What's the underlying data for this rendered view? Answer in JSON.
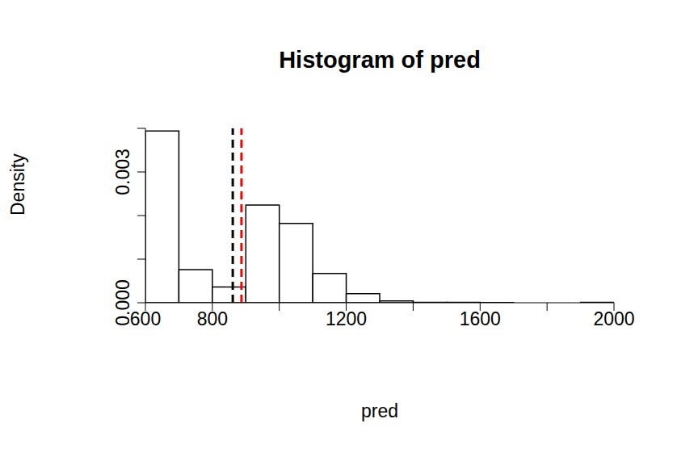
{
  "chart_data": {
    "type": "histogram",
    "title": "Histogram of pred",
    "x_label": "pred",
    "y_label": "Density",
    "bins": [
      600,
      700,
      800,
      900,
      1000,
      1100,
      1200,
      1300,
      1400,
      1500,
      1600,
      1700,
      1800,
      1900,
      2000
    ],
    "values": [
      0.00394,
      0.00076,
      0.00036,
      0.00224,
      0.00182,
      0.00067,
      0.00021,
      4e-05,
      1e-05,
      1e-05,
      3e-06,
      0,
      0,
      1e-05
    ],
    "color": "white",
    "xlim": [
      600,
      2000
    ],
    "xticks": [
      600,
      800,
      {
        "value": 1000,
        "label": null
      },
      1200,
      {
        "value": 1400,
        "label": null
      },
      1600,
      {
        "value": 1800,
        "label": null
      },
      2000
    ],
    "ylim": [
      0,
      0.004
    ],
    "yticks": [
      {
        "value": 0,
        "label": "0.000"
      },
      {
        "value": 0.001,
        "label": null
      },
      {
        "value": 0.002,
        "label": null
      },
      {
        "value": 0.003,
        "label": "0.003"
      },
      {
        "value": 0.004,
        "label": null
      }
    ],
    "vlines": [
      {
        "value": 861,
        "color": "black",
        "line_style": "dashed"
      },
      {
        "value": 887,
        "color": "red",
        "line_style": "dashed"
      }
    ],
    "grid": false
  }
}
